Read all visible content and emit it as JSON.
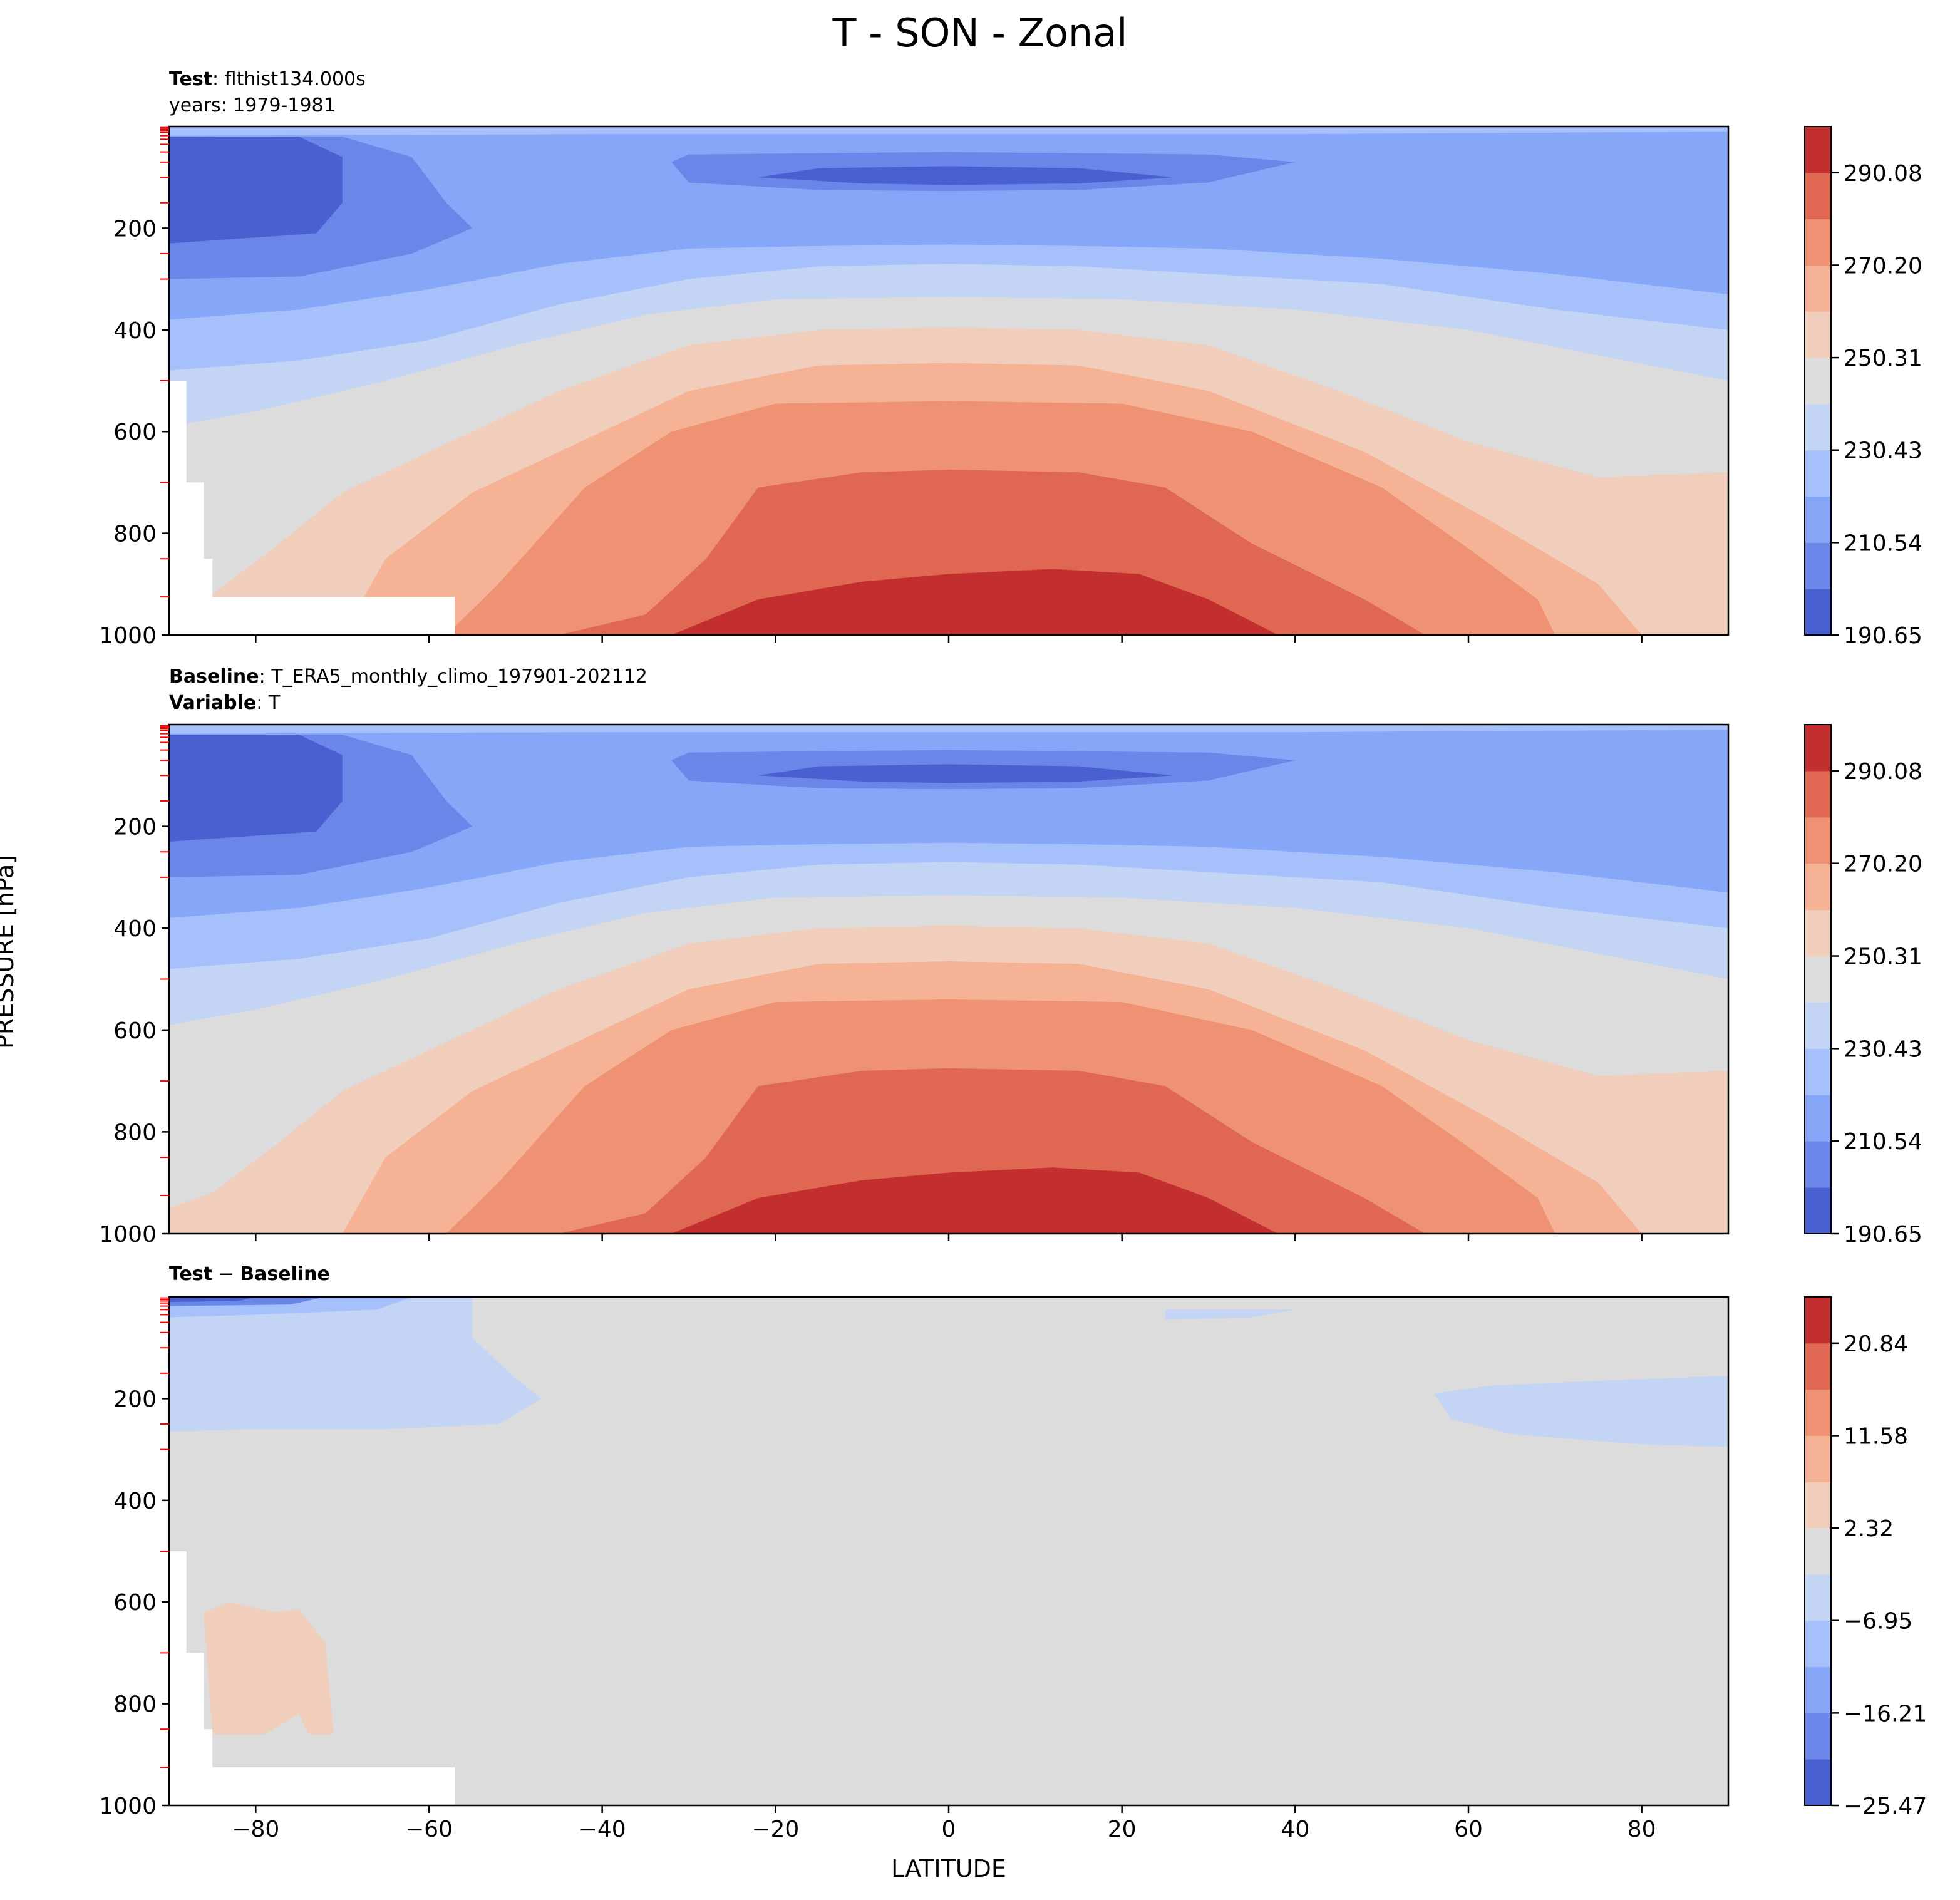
{
  "figure": {
    "title": "T - SON - Zonal",
    "ylabel": "PRESSURE [hPa]",
    "xlabel": "LATITUDE"
  },
  "panels": [
    {
      "title_bold_1": "Test",
      "title_text_1": ": flthist134.000s",
      "title_line_2": "years: 1979-1981"
    },
    {
      "title_bold_1": "Baseline",
      "title_text_1": ": T_ERA5_monthly_climo_197901-202112",
      "title_bold_2": "Variable",
      "title_text_2": ": T"
    },
    {
      "title_bold_1": "Test",
      "title_text_1": " − ",
      "title_bold_2": "Baseline"
    }
  ],
  "colors": {
    "temperature_levels": [
      "#4a5fd0",
      "#6a86e8",
      "#86a7f7",
      "#a6c0fb",
      "#c4d4f4",
      "#dcdcdc",
      "#f1cdbb",
      "#f5b295",
      "#ef9274",
      "#e06752",
      "#c32f2e"
    ],
    "difference_levels": [
      "#4a5fd0",
      "#6a86e8",
      "#86a7f7",
      "#a6c0fb",
      "#c4d4f4",
      "#dcdcdc",
      "#f1cdbb",
      "#f5b295",
      "#ef9274",
      "#e06752",
      "#c32f2e"
    ]
  },
  "chart_data": [
    {
      "type": "heatmap",
      "subtype": "filled-contour",
      "title": "Test: flthist134.000s, years: 1979-1981",
      "xlabel": "LATITUDE",
      "ylabel": "PRESSURE [hPa]",
      "xlim": [
        -90,
        90
      ],
      "ylim": [
        1000,
        0
      ],
      "xticks": [
        -80,
        -60,
        -40,
        -20,
        0,
        20,
        40,
        60,
        80
      ],
      "yticks": [
        200,
        400,
        600,
        800,
        1000
      ],
      "yticklabels": [
        "200",
        "400",
        "600",
        "800",
        "1000"
      ],
      "colorbar_ticks": [
        "290.08",
        "270.20",
        "250.31",
        "230.43",
        "210.54",
        "190.65"
      ],
      "colorbar_range": [
        190.65,
        300.0
      ],
      "approx_values": [
        {
          "region": "stratosphere south pole (~100-200 hPa, 85S)",
          "value": 192
        },
        {
          "region": "tropical tropopause (~100 hPa, 0)",
          "value": 195
        },
        {
          "region": "surface equator/ 10N (1000 hPa)",
          "value": 298
        },
        {
          "region": "surface 60N (1000 hPa)",
          "value": 270
        },
        {
          "region": "surface 80N (1000 hPa)",
          "value": 260
        },
        {
          "region": "500 hPa equator",
          "value": 268
        },
        {
          "region": "400 hPa 60S",
          "value": 240
        }
      ]
    },
    {
      "type": "heatmap",
      "subtype": "filled-contour",
      "title": "Baseline: T_ERA5_monthly_climo_197901-202112, Variable: T",
      "xlabel": "LATITUDE",
      "ylabel": "PRESSURE [hPa]",
      "xlim": [
        -90,
        90
      ],
      "ylim": [
        1000,
        0
      ],
      "xticks": [
        -80,
        -60,
        -40,
        -20,
        0,
        20,
        40,
        60,
        80
      ],
      "yticks": [
        200,
        400,
        600,
        800,
        1000
      ],
      "yticklabels": [
        "200",
        "400",
        "600",
        "800",
        "1000"
      ],
      "colorbar_ticks": [
        "290.08",
        "270.20",
        "250.31",
        "230.43",
        "210.54",
        "190.65"
      ],
      "colorbar_range": [
        190.65,
        300.0
      ],
      "approx_values": [
        {
          "region": "stratosphere south pole (~100 hPa, 85S)",
          "value": 193
        },
        {
          "region": "tropical tropopause (~100 hPa, 0)",
          "value": 195
        },
        {
          "region": "surface equator/ 15N (1000 hPa)",
          "value": 298
        },
        {
          "region": "surface 60N (1000 hPa)",
          "value": 272
        },
        {
          "region": "surface 85N (1000 hPa)",
          "value": 258
        },
        {
          "region": "800 hPa 85S",
          "value": 240
        }
      ]
    },
    {
      "type": "heatmap",
      "subtype": "filled-contour",
      "title": "Test − Baseline",
      "xlabel": "LATITUDE",
      "ylabel": "PRESSURE [hPa]",
      "xlim": [
        -90,
        90
      ],
      "ylim": [
        1000,
        0
      ],
      "xticks": [
        -80,
        -60,
        -40,
        -20,
        0,
        20,
        40,
        60,
        80
      ],
      "yticks": [
        200,
        400,
        600,
        800,
        1000
      ],
      "yticklabels": [
        "200",
        "400",
        "600",
        "800",
        "1000"
      ],
      "colorbar_ticks": [
        "20.84",
        "11.58",
        "2.32",
        "−6.95",
        "−16.21",
        "−25.47"
      ],
      "colorbar_range": [
        -25.47,
        30.0
      ],
      "approx_values": [
        {
          "region": "upper levels south pole (~10 hPa)",
          "value": -22
        },
        {
          "region": "100-250 hPa 60-90S",
          "value": -5
        },
        {
          "region": "150-250 hPa 55-90N",
          "value": -4
        },
        {
          "region": "600-850 hPa 75-85S",
          "value": 5
        },
        {
          "region": "most of domain",
          "value": 0
        }
      ]
    }
  ]
}
